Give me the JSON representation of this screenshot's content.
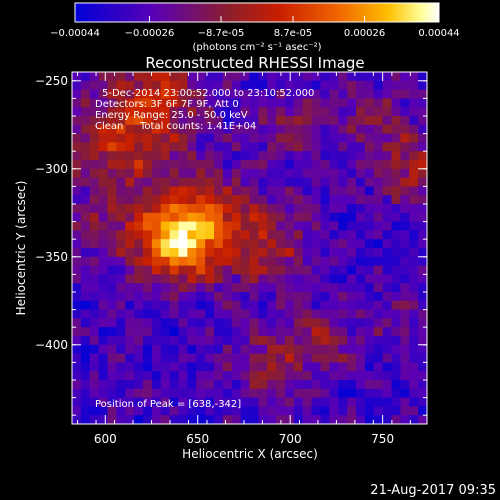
{
  "chart_data": {
    "type": "heatmap",
    "title": "Reconstructed RHESSI Image",
    "xlabel": "Heliocentric X (arcsec)",
    "ylabel": "Heliocentric Y (arcsec)",
    "xlim": [
      582,
      774
    ],
    "ylim": [
      -445,
      -245
    ],
    "x_ticks": [
      "600",
      "650",
      "700",
      "750"
    ],
    "y_ticks": [
      "-250",
      "-300",
      "-350",
      "-400"
    ],
    "colorbar": {
      "min": -0.00044,
      "max": 0.00044,
      "ticks": [
        "-0.00044",
        "-0.00026",
        "-8.7e-05",
        "8.7e-05",
        "0.00026",
        "0.00044"
      ],
      "unit": "(photons cm⁻² s⁻¹ asec⁻²)",
      "colormap": [
        "#0000d8",
        "#5a00b4",
        "#8c1e2d",
        "#c81e00",
        "#f06400",
        "#ffbe00",
        "#ffff96",
        "#ffffff"
      ]
    },
    "annotations": {
      "time": "5-Dec-2014 23:00:52.000 to 23:10:52.000",
      "detectors": "Detectors: 3F 6F 7F 9F, Att 0",
      "energy": "Energy Range: 25.0 - 50.0 keV",
      "method": "Clean",
      "counts": "Total counts: 1.41E+04",
      "peak": "Position of Peak = [638,-342]"
    },
    "peak": {
      "x": 638,
      "y": -342
    },
    "grid": false,
    "legend": "none"
  },
  "footer": {
    "timestamp": "21-Aug-2017 09:35"
  }
}
